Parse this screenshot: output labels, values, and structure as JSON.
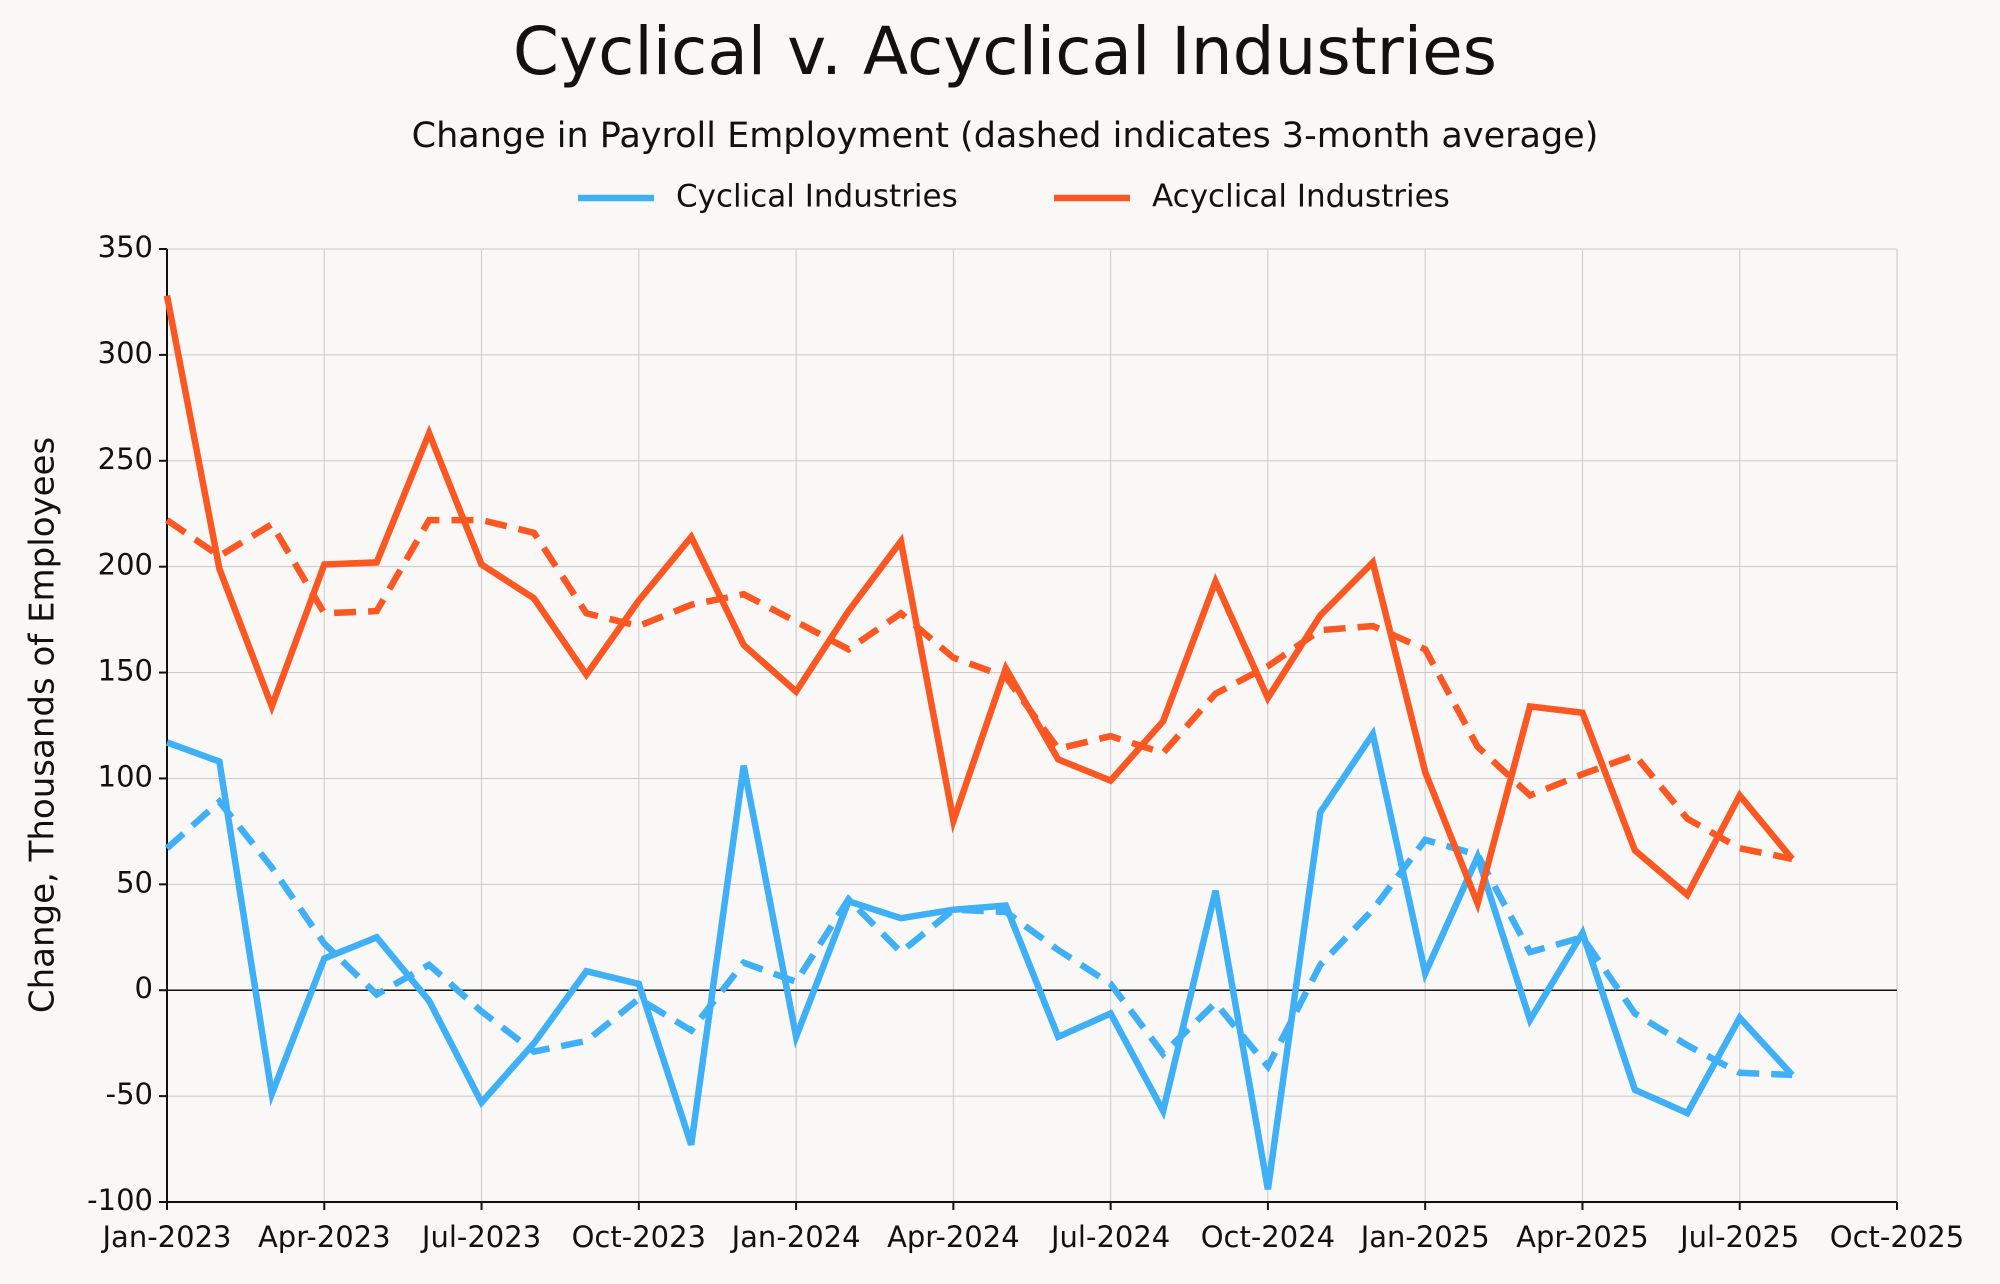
{
  "chart_data": {
    "type": "line",
    "title": "Cyclical v. Acyclical Industries",
    "subtitle": "Change in Payroll Employment (dashed indicates 3-month average)",
    "y_label": "Change, Thousands of Employees",
    "x": [
      "2023-01",
      "2023-02",
      "2023-03",
      "2023-04",
      "2023-05",
      "2023-06",
      "2023-07",
      "2023-08",
      "2023-09",
      "2023-10",
      "2023-11",
      "2023-12",
      "2024-01",
      "2024-02",
      "2024-03",
      "2024-04",
      "2024-05",
      "2024-06",
      "2024-07",
      "2024-08",
      "2024-09",
      "2024-10",
      "2024-11",
      "2024-12",
      "2025-01",
      "2025-02",
      "2025-03",
      "2025-04",
      "2025-05",
      "2025-06",
      "2025-07",
      "2025-08"
    ],
    "series": [
      {
        "name": "Cyclical Industries",
        "color": "#3fb0f5",
        "values": [
          117,
          108,
          -49,
          15,
          25,
          -5,
          -53,
          -25,
          9,
          3,
          -73,
          106,
          -22,
          42,
          34,
          38,
          40,
          -22,
          -11,
          -57,
          47,
          -94,
          84,
          121,
          8,
          63,
          -14,
          27,
          -47,
          -58,
          -13,
          -40
        ],
        "average": [
          67,
          89,
          58,
          22,
          -2,
          12,
          -10,
          -29,
          -24,
          -4,
          -19,
          13,
          4,
          43,
          18,
          38,
          37,
          19,
          3,
          -30,
          -6,
          -36,
          12,
          38,
          71,
          64,
          18,
          25,
          -11,
          -26,
          -39,
          -40
        ]
      },
      {
        "name": "Acyclical Industries",
        "color": "#fb5722",
        "values": [
          328,
          199,
          134,
          201,
          202,
          263,
          201,
          185,
          149,
          184,
          214,
          163,
          141,
          179,
          212,
          80,
          152,
          109,
          99,
          127,
          193,
          138,
          177,
          202,
          103,
          41,
          134,
          131,
          66,
          45,
          92,
          62
        ],
        "average": [
          222,
          205,
          220,
          178,
          179,
          222,
          222,
          216,
          178,
          172,
          182,
          187,
          174,
          161,
          178,
          157,
          148,
          114,
          120,
          112,
          140,
          153,
          170,
          172,
          161,
          115,
          92,
          102,
          111,
          81,
          67,
          62
        ]
      }
    ],
    "xlim": [
      "2023-01",
      "2025-10"
    ],
    "xticks": [
      {
        "value": "2023-01",
        "label": "Jan-2023"
      },
      {
        "value": "2023-04",
        "label": "Apr-2023"
      },
      {
        "value": "2023-07",
        "label": "Jul-2023"
      },
      {
        "value": "2023-10",
        "label": "Oct-2023"
      },
      {
        "value": "2024-01",
        "label": "Jan-2024"
      },
      {
        "value": "2024-04",
        "label": "Apr-2024"
      },
      {
        "value": "2024-07",
        "label": "Jul-2024"
      },
      {
        "value": "2024-10",
        "label": "Oct-2024"
      },
      {
        "value": "2025-01",
        "label": "Jan-2025"
      },
      {
        "value": "2025-04",
        "label": "Apr-2025"
      },
      {
        "value": "2025-07",
        "label": "Jul-2025"
      },
      {
        "value": "2025-10",
        "label": "Oct-2025"
      }
    ],
    "ylim": [
      -100,
      350
    ],
    "yticks": [
      -100,
      -50,
      0,
      50,
      100,
      150,
      200,
      250,
      300,
      350
    ],
    "grid": true
  }
}
